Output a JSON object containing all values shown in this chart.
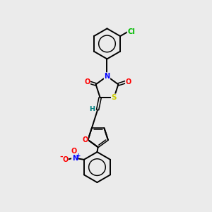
{
  "bg_color": "#ebebeb",
  "bond_color": "#000000",
  "atom_colors": {
    "N": "#0000ff",
    "O": "#ff0000",
    "S": "#cccc00",
    "Cl": "#00bb00",
    "H": "#008080",
    "C": "#000000"
  },
  "lw": 1.4,
  "lw_double": 1.1,
  "fs": 7.0,
  "xlim": [
    0,
    10
  ],
  "ylim": [
    0,
    10
  ]
}
